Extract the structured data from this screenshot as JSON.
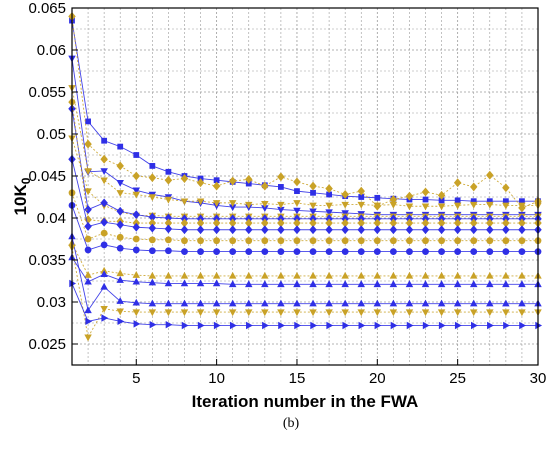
{
  "chart_data": {
    "type": "line",
    "xlabel": "Iteration number in the FWA",
    "ylabel_main": "10K",
    "ylabel_sub": "0",
    "panel_label": "(b)",
    "xlim": [
      1,
      30
    ],
    "ylim": [
      0.0225,
      0.065
    ],
    "x_ticks": [
      5,
      10,
      15,
      20,
      25,
      30
    ],
    "x_tick_labels": [
      "5",
      "10",
      "15",
      "20",
      "25",
      "30"
    ],
    "y_ticks": [
      0.025,
      0.03,
      0.035,
      0.04,
      0.045,
      0.05,
      0.055,
      0.06,
      0.065
    ],
    "y_tick_labels": [
      "0.025",
      "0.03",
      "0.035",
      "0.04",
      "0.045",
      "0.05",
      "0.055",
      "0.06",
      "0.065"
    ],
    "grid": true,
    "colors": {
      "blue": "#2f2fe6",
      "gold": "#c9a227",
      "grid": "#9a9a9a"
    },
    "series": [
      {
        "color": "blue",
        "marker": "square",
        "dashed": false,
        "values": [
          0.0635,
          0.0515,
          0.0492,
          0.0485,
          0.0475,
          0.0462,
          0.0455,
          0.045,
          0.0447,
          0.0445,
          0.0443,
          0.0441,
          0.0439,
          0.0437,
          0.0432,
          0.043,
          0.0428,
          0.0426,
          0.0425,
          0.0424,
          0.0423,
          0.0422,
          0.0422,
          0.0421,
          0.0421,
          0.042,
          0.042,
          0.042,
          0.042,
          0.042
        ]
      },
      {
        "color": "gold",
        "marker": "diamond",
        "dashed": true,
        "values": [
          0.064,
          0.0488,
          0.047,
          0.0462,
          0.045,
          0.0448,
          0.0445,
          0.0447,
          0.0442,
          0.0438,
          0.0444,
          0.0446,
          0.0438,
          0.0449,
          0.0443,
          0.0438,
          0.0435,
          0.0428,
          0.0432,
          0.0414,
          0.0422,
          0.0426,
          0.0431,
          0.0427,
          0.0442,
          0.0437,
          0.0451,
          0.0436,
          0.0412,
          0.042
        ]
      },
      {
        "color": "blue",
        "marker": "triangle-down",
        "dashed": false,
        "values": [
          0.059,
          0.0455,
          0.0456,
          0.0442,
          0.0433,
          0.0428,
          0.0425,
          0.042,
          0.0418,
          0.0415,
          0.0413,
          0.0413,
          0.0412,
          0.041,
          0.0409,
          0.0408,
          0.0407,
          0.0406,
          0.0405,
          0.0404,
          0.0404,
          0.0404,
          0.0404,
          0.0404,
          0.0404,
          0.0404,
          0.0404,
          0.0404,
          0.0404,
          0.0404
        ]
      },
      {
        "color": "gold",
        "marker": "triangle-down",
        "dashed": true,
        "values": [
          0.0555,
          0.0456,
          0.0445,
          0.043,
          0.0428,
          0.0425,
          0.0422,
          0.042,
          0.042,
          0.0418,
          0.0418,
          0.0416,
          0.0417,
          0.0416,
          0.0418,
          0.0415,
          0.0415,
          0.0416,
          0.0416,
          0.0415,
          0.0416,
          0.0414,
          0.0414,
          0.0414,
          0.0415,
          0.0416,
          0.0416,
          0.0415,
          0.0415,
          0.0415
        ]
      },
      {
        "color": "gold",
        "marker": "triangle-down",
        "dashed": true,
        "values": [
          0.0495,
          0.0432,
          0.0415,
          0.0407,
          0.0403,
          0.0403,
          0.0402,
          0.0402,
          0.0402,
          0.0402,
          0.0402,
          0.0402,
          0.0402,
          0.0402,
          0.0402,
          0.0402,
          0.0402,
          0.0402,
          0.0402,
          0.0402,
          0.0402,
          0.0402,
          0.0402,
          0.0402,
          0.0402,
          0.0402,
          0.0402,
          0.0402,
          0.0402,
          0.0402
        ]
      },
      {
        "color": "blue",
        "marker": "diamond",
        "dashed": false,
        "values": [
          0.053,
          0.041,
          0.0418,
          0.0408,
          0.0404,
          0.0401,
          0.04,
          0.0399,
          0.0399,
          0.0399,
          0.0399,
          0.0399,
          0.0399,
          0.0399,
          0.0399,
          0.0399,
          0.0399,
          0.0399,
          0.0399,
          0.0399,
          0.0399,
          0.0399,
          0.0399,
          0.0399,
          0.0399,
          0.0399,
          0.0399,
          0.0399,
          0.0399,
          0.0399
        ]
      },
      {
        "color": "gold",
        "marker": "diamond",
        "dashed": true,
        "values": [
          0.0538,
          0.0398,
          0.0396,
          0.0396,
          0.0394,
          0.0394,
          0.0394,
          0.0394,
          0.0394,
          0.0394,
          0.0394,
          0.0394,
          0.0394,
          0.0394,
          0.0394,
          0.0394,
          0.0394,
          0.0394,
          0.0394,
          0.0394,
          0.0394,
          0.0394,
          0.0394,
          0.0394,
          0.0394,
          0.0394,
          0.0394,
          0.0394,
          0.0394,
          0.0394
        ]
      },
      {
        "color": "blue",
        "marker": "diamond",
        "dashed": false,
        "values": [
          0.047,
          0.039,
          0.0395,
          0.0392,
          0.0389,
          0.0388,
          0.0387,
          0.0386,
          0.0386,
          0.0386,
          0.0386,
          0.0386,
          0.0386,
          0.0386,
          0.0386,
          0.0386,
          0.0386,
          0.0386,
          0.0386,
          0.0386,
          0.0386,
          0.0386,
          0.0386,
          0.0386,
          0.0386,
          0.0386,
          0.0386,
          0.0386,
          0.0386,
          0.0386
        ]
      },
      {
        "color": "gold",
        "marker": "circle",
        "dashed": true,
        "values": [
          0.043,
          0.0375,
          0.0382,
          0.0377,
          0.0375,
          0.0374,
          0.0374,
          0.0373,
          0.0373,
          0.0373,
          0.0373,
          0.0373,
          0.0373,
          0.0373,
          0.0373,
          0.0373,
          0.0373,
          0.0373,
          0.0373,
          0.0373,
          0.0373,
          0.0373,
          0.0373,
          0.0373,
          0.0373,
          0.0373,
          0.0373,
          0.0373,
          0.0373,
          0.0373
        ]
      },
      {
        "color": "blue",
        "marker": "circle",
        "dashed": false,
        "values": [
          0.0415,
          0.0362,
          0.0368,
          0.0364,
          0.0362,
          0.0361,
          0.0361,
          0.036,
          0.036,
          0.036,
          0.036,
          0.036,
          0.036,
          0.036,
          0.036,
          0.036,
          0.036,
          0.036,
          0.036,
          0.036,
          0.036,
          0.036,
          0.036,
          0.036,
          0.036,
          0.036,
          0.036,
          0.036,
          0.036,
          0.036
        ]
      },
      {
        "color": "gold",
        "marker": "triangle-up",
        "dashed": true,
        "values": [
          0.037,
          0.0332,
          0.0337,
          0.0334,
          0.0332,
          0.0331,
          0.0331,
          0.0331,
          0.0331,
          0.0331,
          0.0331,
          0.0331,
          0.0331,
          0.0331,
          0.0331,
          0.0331,
          0.0331,
          0.0331,
          0.0331,
          0.0331,
          0.0331,
          0.0331,
          0.0331,
          0.0331,
          0.0331,
          0.0331,
          0.0331,
          0.0331,
          0.0331,
          0.0331
        ]
      },
      {
        "color": "blue",
        "marker": "triangle-up",
        "dashed": false,
        "values": [
          0.0353,
          0.0324,
          0.0333,
          0.0326,
          0.0324,
          0.0323,
          0.0322,
          0.0322,
          0.0322,
          0.0322,
          0.0321,
          0.0321,
          0.0321,
          0.0321,
          0.0321,
          0.0321,
          0.0321,
          0.0321,
          0.0321,
          0.0321,
          0.0321,
          0.0321,
          0.0321,
          0.0321,
          0.0321,
          0.0321,
          0.0321,
          0.0321,
          0.0321,
          0.0321
        ]
      },
      {
        "color": "blue",
        "marker": "triangle-up",
        "dashed": false,
        "values": [
          0.0378,
          0.029,
          0.0318,
          0.0301,
          0.0299,
          0.0298,
          0.0298,
          0.0298,
          0.0298,
          0.0298,
          0.0298,
          0.0298,
          0.0298,
          0.0298,
          0.0298,
          0.0298,
          0.0298,
          0.0298,
          0.0298,
          0.0298,
          0.0298,
          0.0298,
          0.0298,
          0.0298,
          0.0298,
          0.0298,
          0.0298,
          0.0298,
          0.0298,
          0.0298
        ]
      },
      {
        "color": "gold",
        "marker": "triangle-down",
        "dashed": true,
        "values": [
          0.0365,
          0.0258,
          0.0292,
          0.0289,
          0.0288,
          0.0288,
          0.0288,
          0.0288,
          0.0288,
          0.0288,
          0.0288,
          0.0288,
          0.0288,
          0.0288,
          0.0288,
          0.0288,
          0.0288,
          0.0288,
          0.0288,
          0.0288,
          0.0288,
          0.0288,
          0.0288,
          0.0288,
          0.0288,
          0.0288,
          0.0288,
          0.0288,
          0.0288,
          0.0288
        ]
      },
      {
        "color": "blue",
        "marker": "triangle-right",
        "dashed": false,
        "values": [
          0.0322,
          0.0277,
          0.0281,
          0.0277,
          0.0274,
          0.0273,
          0.0273,
          0.0272,
          0.0272,
          0.0272,
          0.0272,
          0.0272,
          0.0272,
          0.0272,
          0.0272,
          0.0272,
          0.0272,
          0.0272,
          0.0272,
          0.0272,
          0.0272,
          0.0272,
          0.0272,
          0.0272,
          0.0272,
          0.0272,
          0.0272,
          0.0272,
          0.0272,
          0.0272
        ]
      }
    ]
  }
}
